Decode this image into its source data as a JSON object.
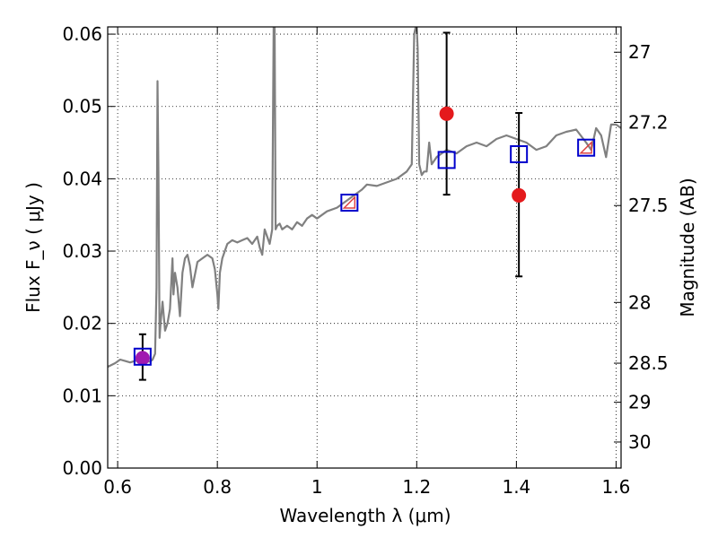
{
  "chart_data": {
    "type": "scatter",
    "xlabel": "Wavelength  λ (μm)",
    "ylabel": "Flux  F_ν  ( μJy )",
    "ylabel_right": "Magnitude (AB)",
    "xlim": [
      0.58,
      1.61
    ],
    "ylim": [
      0.0,
      0.061
    ],
    "x_ticks": [
      0.6,
      0.8,
      1.0,
      1.2,
      1.4,
      1.6
    ],
    "x_tick_labels": [
      "0.6",
      "0.8",
      "1",
      "1.2",
      "1.4",
      "1.6"
    ],
    "y_ticks": [
      0.0,
      0.01,
      0.02,
      0.03,
      0.04,
      0.05,
      0.06
    ],
    "y_tick_labels": [
      "0.00",
      "0.01",
      "0.02",
      "0.03",
      "0.04",
      "0.05",
      "0.06"
    ],
    "mag_ticks": [
      {
        "label": "27",
        "flux": 0.0575
      },
      {
        "label": "27.2",
        "flux": 0.0478
      },
      {
        "label": "27.5",
        "flux": 0.0363
      },
      {
        "label": "28",
        "flux": 0.0229
      },
      {
        "label": "28.5",
        "flux": 0.0145
      },
      {
        "label": "29",
        "flux": 0.0091
      },
      {
        "label": "30",
        "flux": 0.0036
      }
    ],
    "grid": true,
    "series": [
      {
        "kind": "spectrum",
        "color": "#808080",
        "x": [
          0.58,
          0.595,
          0.605,
          0.615,
          0.625,
          0.635,
          0.645,
          0.655,
          0.665,
          0.67,
          0.675,
          0.678,
          0.68,
          0.682,
          0.684,
          0.686,
          0.69,
          0.695,
          0.7,
          0.705,
          0.71,
          0.712,
          0.715,
          0.72,
          0.725,
          0.73,
          0.735,
          0.74,
          0.745,
          0.75,
          0.76,
          0.77,
          0.78,
          0.79,
          0.795,
          0.8,
          0.802,
          0.805,
          0.81,
          0.815,
          0.82,
          0.83,
          0.84,
          0.85,
          0.86,
          0.87,
          0.88,
          0.885,
          0.89,
          0.895,
          0.9,
          0.905,
          0.91,
          0.913,
          0.915,
          0.917,
          0.92,
          0.925,
          0.93,
          0.94,
          0.95,
          0.96,
          0.97,
          0.98,
          0.99,
          1.0,
          1.02,
          1.04,
          1.06,
          1.07,
          1.08,
          1.09,
          1.1,
          1.12,
          1.14,
          1.16,
          1.18,
          1.19,
          1.195,
          1.198,
          1.2,
          1.202,
          1.205,
          1.21,
          1.215,
          1.22,
          1.225,
          1.23,
          1.24,
          1.26,
          1.28,
          1.3,
          1.32,
          1.34,
          1.36,
          1.38,
          1.4,
          1.42,
          1.44,
          1.46,
          1.48,
          1.5,
          1.52,
          1.54,
          1.55,
          1.56,
          1.57,
          1.58,
          1.59,
          1.6,
          1.61
        ],
        "y": [
          0.014,
          0.0145,
          0.015,
          0.0148,
          0.0146,
          0.0148,
          0.015,
          0.0148,
          0.0147,
          0.015,
          0.0158,
          0.025,
          0.0535,
          0.04,
          0.018,
          0.02,
          0.023,
          0.019,
          0.02,
          0.022,
          0.029,
          0.024,
          0.027,
          0.025,
          0.021,
          0.027,
          0.029,
          0.0295,
          0.028,
          0.025,
          0.0285,
          0.029,
          0.0295,
          0.029,
          0.0275,
          0.024,
          0.022,
          0.027,
          0.029,
          0.03,
          0.031,
          0.0315,
          0.0312,
          0.0315,
          0.0318,
          0.031,
          0.032,
          0.0305,
          0.0295,
          0.033,
          0.032,
          0.031,
          0.033,
          0.061,
          0.061,
          0.033,
          0.0335,
          0.0338,
          0.033,
          0.0335,
          0.033,
          0.034,
          0.0335,
          0.0345,
          0.035,
          0.0345,
          0.0355,
          0.036,
          0.037,
          0.0375,
          0.038,
          0.0385,
          0.0392,
          0.039,
          0.0395,
          0.04,
          0.041,
          0.042,
          0.06,
          0.061,
          0.061,
          0.058,
          0.042,
          0.0405,
          0.041,
          0.041,
          0.045,
          0.042,
          0.043,
          0.044,
          0.0435,
          0.0445,
          0.045,
          0.0445,
          0.0455,
          0.046,
          0.0455,
          0.045,
          0.044,
          0.0445,
          0.046,
          0.0465,
          0.0468,
          0.045,
          0.044,
          0.047,
          0.046,
          0.043,
          0.0475,
          0.0475,
          0.047
        ]
      },
      {
        "kind": "model_photometry",
        "marker": "square",
        "color": "#0000cc",
        "x": [
          0.65,
          1.065,
          1.26,
          1.405,
          1.54
        ],
        "y": [
          0.0154,
          0.0367,
          0.0426,
          0.0434,
          0.0443
        ]
      },
      {
        "kind": "observed_photometry",
        "marker": "circle",
        "color": "#e41a1c",
        "x": [
          0.65,
          1.26,
          1.405
        ],
        "y": [
          0.0152,
          0.049,
          0.0377
        ],
        "yerr_low": [
          0.003,
          0.0112,
          0.0112
        ],
        "yerr_high": [
          0.0033,
          0.0112,
          0.0114
        ]
      },
      {
        "kind": "faint_detections",
        "marker": "triangle",
        "color": "#dd4444",
        "x": [
          1.065,
          1.54
        ],
        "y": [
          0.0367,
          0.0443
        ]
      }
    ]
  }
}
